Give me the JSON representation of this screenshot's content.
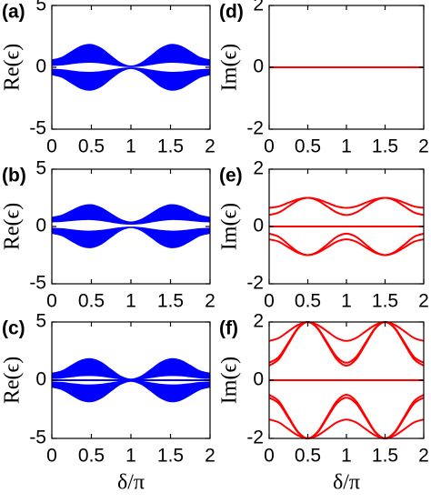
{
  "chart_data": [
    {
      "type": "area",
      "label": "(a)",
      "ylabel": "Re(ϵ)",
      "xlim": [
        0,
        2
      ],
      "xticks": [
        0,
        0.5,
        1,
        1.5,
        2
      ],
      "ylim": [
        -5,
        5
      ],
      "yticks": [
        -5,
        0,
        5
      ],
      "x": [
        0,
        0.125,
        0.25,
        0.375,
        0.5,
        0.625,
        0.75,
        0.875,
        1,
        1.125,
        1.25,
        1.375,
        1.5,
        1.625,
        1.75,
        1.875,
        2
      ],
      "bands": [
        {
          "color": "#0000ff",
          "upper": [
            0.6,
            0.8,
            1.28,
            1.73,
            1.85,
            1.54,
            0.92,
            0.34,
            0.1,
            0.34,
            0.92,
            1.54,
            1.85,
            1.73,
            1.28,
            0.8,
            0.6
          ],
          "lower": [
            0.15,
            0.19,
            0.29,
            0.38,
            0.4,
            0.34,
            0.22,
            0.1,
            0.05,
            0.1,
            0.22,
            0.34,
            0.4,
            0.38,
            0.29,
            0.19,
            0.15
          ]
        },
        {
          "color": "#0000ff",
          "upper": [
            -0.15,
            -0.19,
            -0.29,
            -0.38,
            -0.4,
            -0.34,
            -0.22,
            -0.1,
            -0.05,
            -0.1,
            -0.22,
            -0.34,
            -0.4,
            -0.38,
            -0.29,
            -0.19,
            -0.15
          ],
          "lower": [
            -0.6,
            -0.8,
            -1.28,
            -1.73,
            -1.85,
            -1.54,
            -0.92,
            -0.34,
            -0.1,
            -0.34,
            -0.92,
            -1.54,
            -1.85,
            -1.73,
            -1.28,
            -0.8,
            -0.6
          ]
        }
      ],
      "series": []
    },
    {
      "type": "area",
      "label": "(b)",
      "ylabel": "Re(ϵ)",
      "xlim": [
        0,
        2
      ],
      "xticks": [
        0,
        0.5,
        1,
        1.5,
        2
      ],
      "ylim": [
        -5,
        5
      ],
      "yticks": [
        -5,
        0,
        5
      ],
      "x": [
        0,
        0.125,
        0.25,
        0.375,
        0.5,
        0.625,
        0.75,
        0.875,
        1,
        1.125,
        1.25,
        1.375,
        1.5,
        1.625,
        1.75,
        1.875,
        2
      ],
      "bands": [
        {
          "color": "#0000ff",
          "upper": [
            0.8,
            0.98,
            1.39,
            1.79,
            1.9,
            1.63,
            1.11,
            0.61,
            0.4,
            0.61,
            1.11,
            1.63,
            1.9,
            1.79,
            1.39,
            0.98,
            0.8
          ],
          "lower": [
            0.4,
            0.44,
            0.52,
            0.59,
            0.6,
            0.52,
            0.38,
            0.25,
            0.2,
            0.25,
            0.38,
            0.52,
            0.6,
            0.59,
            0.52,
            0.44,
            0.4
          ]
        },
        {
          "color": "#0000ff",
          "upper": [
            -0.15,
            -0.19,
            -0.29,
            -0.38,
            -0.4,
            -0.34,
            -0.22,
            -0.1,
            -0.05,
            -0.1,
            -0.22,
            -0.34,
            -0.4,
            -0.38,
            -0.29,
            -0.19,
            -0.15
          ],
          "lower": [
            -0.6,
            -0.8,
            -1.28,
            -1.73,
            -1.85,
            -1.54,
            -0.92,
            -0.34,
            -0.1,
            -0.34,
            -0.92,
            -1.54,
            -1.85,
            -1.73,
            -1.28,
            -0.8,
            -0.6
          ]
        }
      ],
      "series": []
    },
    {
      "type": "area",
      "label": "(c)",
      "ylabel": "Re(ϵ)",
      "xlabel": "δ/π",
      "xlim": [
        0,
        2
      ],
      "xticks": [
        0,
        0.5,
        1,
        1.5,
        2
      ],
      "ylim": [
        -5,
        5
      ],
      "yticks": [
        -5,
        0,
        5
      ],
      "x": [
        0,
        0.125,
        0.25,
        0.375,
        0.5,
        0.625,
        0.75,
        0.875,
        1,
        1.125,
        1.25,
        1.375,
        1.5,
        1.625,
        1.75,
        1.875,
        2
      ],
      "bands": [
        {
          "color": "#0000ff",
          "upper": [
            0.6,
            0.8,
            1.28,
            1.73,
            1.85,
            1.54,
            0.92,
            0.34,
            0.1,
            0.34,
            0.92,
            1.54,
            1.85,
            1.73,
            1.28,
            0.8,
            0.6
          ],
          "lower": [
            0.15,
            0.19,
            0.29,
            0.38,
            0.4,
            0.34,
            0.22,
            0.1,
            0.05,
            0.1,
            0.22,
            0.34,
            0.4,
            0.38,
            0.29,
            0.19,
            0.15
          ]
        },
        {
          "color": "#0000ff",
          "upper": [
            -0.15,
            -0.19,
            -0.29,
            -0.38,
            -0.4,
            -0.34,
            -0.22,
            -0.1,
            -0.05,
            -0.1,
            -0.22,
            -0.34,
            -0.4,
            -0.38,
            -0.29,
            -0.19,
            -0.15
          ],
          "lower": [
            -0.6,
            -0.8,
            -1.28,
            -1.73,
            -1.85,
            -1.54,
            -0.92,
            -0.34,
            -0.1,
            -0.34,
            -0.92,
            -1.54,
            -1.85,
            -1.73,
            -1.28,
            -0.8,
            -0.6
          ]
        }
      ],
      "series": [
        {
          "color": "#0000ff",
          "values": [
            0,
            0,
            0,
            0,
            0,
            0,
            0,
            0,
            0,
            0,
            0,
            0,
            0,
            0,
            0,
            0,
            0
          ]
        }
      ]
    },
    {
      "type": "line",
      "label": "(d)",
      "ylabel": "Im(ϵ)",
      "xlim": [
        0,
        2
      ],
      "xticks": [
        0,
        0.5,
        1,
        1.5,
        2
      ],
      "ylim": [
        -2,
        2
      ],
      "yticks": [
        -2,
        0,
        2
      ],
      "x": [
        0,
        0.125,
        0.25,
        0.375,
        0.5,
        0.625,
        0.75,
        0.875,
        1,
        1.125,
        1.25,
        1.375,
        1.5,
        1.625,
        1.75,
        1.875,
        2
      ],
      "series": [
        {
          "color": "#ff0000",
          "values": [
            0,
            0,
            0,
            0,
            0,
            0,
            0,
            0,
            0,
            0,
            0,
            0,
            0,
            0,
            0,
            0,
            0
          ]
        }
      ]
    },
    {
      "type": "line",
      "label": "(e)",
      "ylabel": "Im(ϵ)",
      "xlim": [
        0,
        2
      ],
      "xticks": [
        0,
        0.5,
        1,
        1.5,
        2
      ],
      "ylim": [
        -2,
        2
      ],
      "yticks": [
        -2,
        0,
        2
      ],
      "x": [
        0,
        0.125,
        0.25,
        0.375,
        0.5,
        0.625,
        0.75,
        0.875,
        1,
        1.125,
        1.25,
        1.375,
        1.5,
        1.625,
        1.75,
        1.875,
        2
      ],
      "series": [
        {
          "color": "#ff0000",
          "values": [
            0.65,
            0.7,
            0.83,
            0.95,
            1,
            0.95,
            0.83,
            0.7,
            0.65,
            0.7,
            0.83,
            0.95,
            1,
            0.95,
            0.83,
            0.7,
            0.65
          ]
        },
        {
          "color": "#ff0000",
          "values": [
            0.4,
            0.49,
            0.7,
            0.91,
            1,
            0.91,
            0.7,
            0.49,
            0.4,
            0.49,
            0.7,
            0.91,
            1,
            0.91,
            0.7,
            0.49,
            0.4
          ]
        },
        {
          "color": "#ff0000",
          "values": [
            0,
            0,
            0,
            0,
            0,
            0,
            0,
            0,
            0,
            0,
            0,
            0,
            0,
            0,
            0,
            0,
            0
          ]
        },
        {
          "color": "#ff0000",
          "values": [
            -0.25,
            -0.36,
            -0.63,
            -0.89,
            -1,
            -0.89,
            -0.63,
            -0.36,
            -0.25,
            -0.36,
            -0.63,
            -0.89,
            -1,
            -0.89,
            -0.63,
            -0.36,
            -0.25
          ]
        },
        {
          "color": "#ff0000",
          "values": [
            -0.45,
            -0.53,
            -0.73,
            -0.92,
            -1,
            -0.92,
            -0.73,
            -0.53,
            -0.45,
            -0.53,
            -0.73,
            -0.92,
            -1,
            -0.92,
            -0.73,
            -0.53,
            -0.45
          ]
        }
      ]
    },
    {
      "type": "line",
      "label": "(f)",
      "ylabel": "Im(ϵ)",
      "xlabel": "δ/π",
      "xlim": [
        0,
        2
      ],
      "xticks": [
        0,
        0.5,
        1,
        1.5,
        2
      ],
      "ylim": [
        -2,
        2
      ],
      "yticks": [
        -2,
        0,
        2
      ],
      "x": [
        0,
        0.125,
        0.25,
        0.375,
        0.5,
        0.625,
        0.75,
        0.875,
        1,
        1.125,
        1.25,
        1.375,
        1.5,
        1.625,
        1.75,
        1.875,
        2
      ],
      "series": [
        {
          "color": "#ff0000",
          "values": [
            1.35,
            1.45,
            1.68,
            1.9,
            2,
            1.9,
            1.68,
            1.45,
            1.35,
            1.45,
            1.68,
            1.9,
            2,
            1.9,
            1.68,
            1.45,
            1.35
          ]
        },
        {
          "color": "#ff0000",
          "values": [
            0.6,
            0.8,
            1.3,
            1.8,
            2,
            1.8,
            1.3,
            0.8,
            0.6,
            0.8,
            1.3,
            1.8,
            2,
            1.8,
            1.3,
            0.8,
            0.6
          ]
        },
        {
          "color": "#ff0000",
          "values": [
            0.5,
            0.72,
            1.25,
            1.78,
            2,
            1.78,
            1.25,
            0.72,
            0.5,
            0.72,
            1.25,
            1.78,
            2,
            1.78,
            1.25,
            0.72,
            0.5
          ]
        },
        {
          "color": "#ff0000",
          "values": [
            0,
            0,
            0,
            0,
            0,
            0,
            0,
            0,
            0,
            0,
            0,
            0,
            0,
            0,
            0,
            0,
            0
          ]
        },
        {
          "color": "#ff0000",
          "values": [
            -0.6,
            -0.8,
            -1.3,
            -1.8,
            -2,
            -1.8,
            -1.3,
            -0.8,
            -0.6,
            -0.8,
            -1.3,
            -1.8,
            -2,
            -1.8,
            -1.3,
            -0.8,
            -0.6
          ]
        },
        {
          "color": "#ff0000",
          "values": [
            -0.5,
            -0.72,
            -1.25,
            -1.78,
            -2,
            -1.78,
            -1.25,
            -0.72,
            -0.5,
            -0.72,
            -1.25,
            -1.78,
            -2,
            -1.78,
            -1.25,
            -0.72,
            -0.5
          ]
        },
        {
          "color": "#ff0000",
          "values": [
            -1.35,
            -1.45,
            -1.68,
            -1.9,
            -2,
            -1.9,
            -1.68,
            -1.45,
            -1.35,
            -1.45,
            -1.68,
            -1.9,
            -2,
            -1.9,
            -1.68,
            -1.45,
            -1.35
          ]
        }
      ]
    }
  ]
}
